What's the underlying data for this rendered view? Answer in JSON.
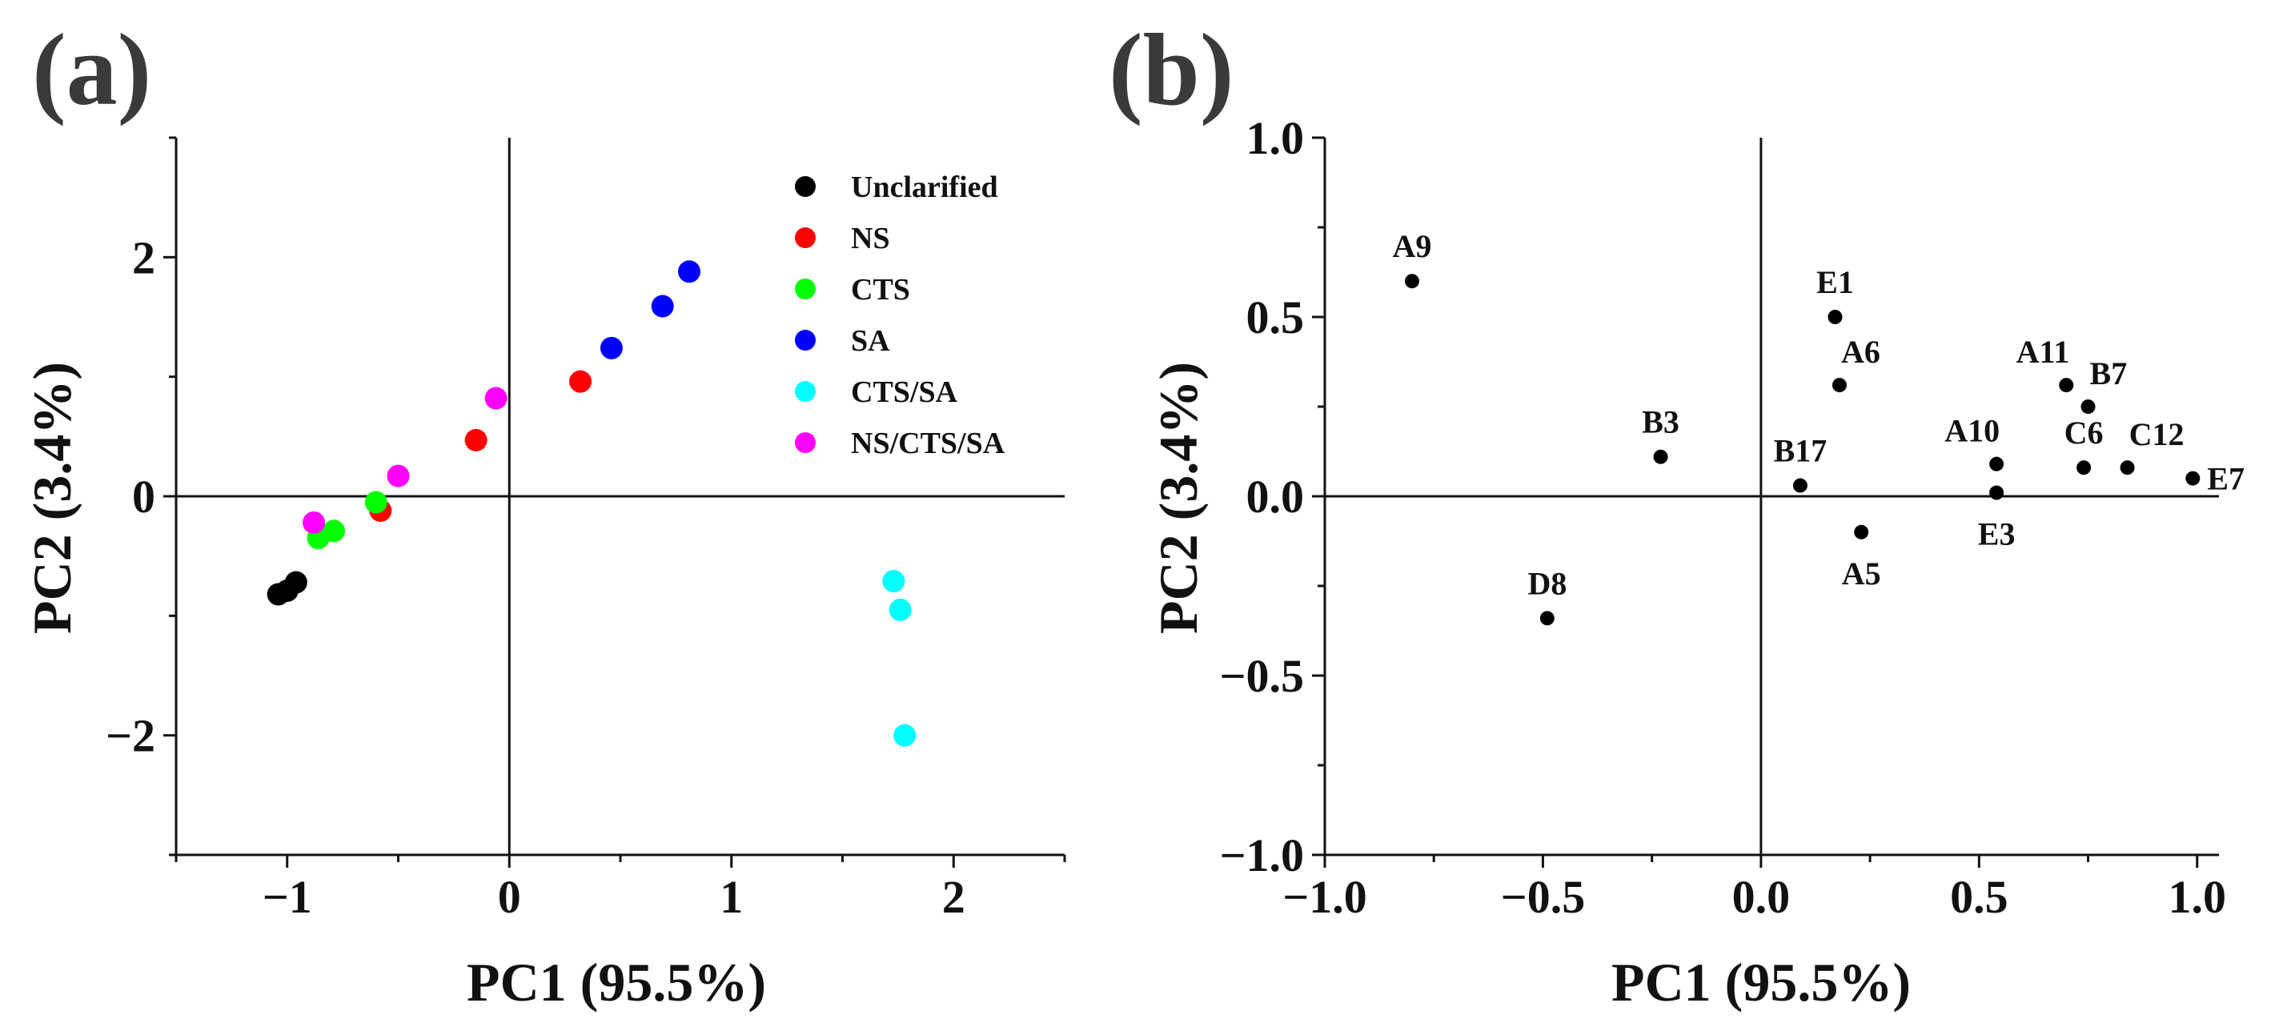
{
  "chart_data": [
    {
      "panel_label": "(a)",
      "type": "scatter",
      "xlabel": "PC1 (95.5%)",
      "ylabel": "PC2 (3.4%)",
      "xlim": [
        -1.5,
        2.5
      ],
      "ylim": [
        -3.0,
        3.0
      ],
      "xticks": [
        -1,
        0,
        1,
        2
      ],
      "xtick_labels": [
        "−1",
        "0",
        "1",
        "2"
      ],
      "yticks": [
        -2,
        0,
        2
      ],
      "ytick_labels": [
        "−2",
        "0",
        "2"
      ],
      "reference_lines": {
        "x": 0,
        "y": 0
      },
      "legend_position": "top-right",
      "series": [
        {
          "name": "Unclarified",
          "color": "#000000",
          "points": [
            [
              -1.04,
              -0.82
            ],
            [
              -1.0,
              -0.79
            ],
            [
              -0.96,
              -0.72
            ]
          ]
        },
        {
          "name": "NS",
          "color": "#ff0000",
          "points": [
            [
              -0.58,
              -0.12
            ],
            [
              -0.15,
              0.47
            ],
            [
              0.32,
              0.96
            ]
          ]
        },
        {
          "name": "CTS",
          "color": "#00ff00",
          "points": [
            [
              -0.86,
              -0.35
            ],
            [
              -0.79,
              -0.29
            ],
            [
              -0.6,
              -0.05
            ]
          ]
        },
        {
          "name": "SA",
          "color": "#0000ff",
          "points": [
            [
              0.46,
              1.24
            ],
            [
              0.69,
              1.59
            ],
            [
              0.81,
              1.88
            ]
          ]
        },
        {
          "name": "CTS/SA",
          "color": "#00ffff",
          "points": [
            [
              1.73,
              -0.71
            ],
            [
              1.76,
              -0.95
            ],
            [
              1.78,
              -2.0
            ]
          ]
        },
        {
          "name": "NS/CTS/SA",
          "color": "#ff00ff",
          "points": [
            [
              -0.88,
              -0.22
            ],
            [
              -0.5,
              0.17
            ],
            [
              -0.06,
              0.82
            ]
          ]
        }
      ]
    },
    {
      "panel_label": "(b)",
      "type": "scatter",
      "xlabel": "PC1 (95.5%)",
      "ylabel": "PC2 (3.4%)",
      "xlim": [
        -1.0,
        1.05
      ],
      "ylim": [
        -1.0,
        1.0
      ],
      "xticks": [
        -1.0,
        -0.5,
        0.0,
        0.5,
        1.0
      ],
      "xtick_labels": [
        "−1.0",
        "−0.5",
        "0.0",
        "0.5",
        "1.0"
      ],
      "yticks": [
        -1.0,
        -0.5,
        0.0,
        0.5,
        1.0
      ],
      "ytick_labels": [
        "−1.0",
        "−0.5",
        "0.0",
        "0.5",
        "1.0"
      ],
      "reference_lines": {
        "x": 0,
        "y": 0
      },
      "point_color": "#000000",
      "points": [
        {
          "label": "A9",
          "x": -0.8,
          "y": 0.6,
          "label_pos": "above"
        },
        {
          "label": "E1",
          "x": 0.17,
          "y": 0.5,
          "label_pos": "above"
        },
        {
          "label": "A6",
          "x": 0.18,
          "y": 0.31,
          "label_pos": "upper-right"
        },
        {
          "label": "A11",
          "x": 0.7,
          "y": 0.31,
          "label_pos": "upper-left"
        },
        {
          "label": "B7",
          "x": 0.75,
          "y": 0.25,
          "label_pos": "upper-right"
        },
        {
          "label": "B3",
          "x": -0.23,
          "y": 0.11,
          "label_pos": "above"
        },
        {
          "label": "B17",
          "x": 0.09,
          "y": 0.03,
          "label_pos": "above"
        },
        {
          "label": "A10",
          "x": 0.54,
          "y": 0.09,
          "label_pos": "upper-left"
        },
        {
          "label": "C6",
          "x": 0.74,
          "y": 0.08,
          "label_pos": "above"
        },
        {
          "label": "C12",
          "x": 0.84,
          "y": 0.08,
          "label_pos": "upper-right"
        },
        {
          "label": "E7",
          "x": 0.99,
          "y": 0.05,
          "label_pos": "right"
        },
        {
          "label": "E3",
          "x": 0.54,
          "y": 0.01,
          "label_pos": "below"
        },
        {
          "label": "A5",
          "x": 0.23,
          "y": -0.1,
          "label_pos": "below"
        },
        {
          "label": "D8",
          "x": -0.49,
          "y": -0.34,
          "label_pos": "above"
        }
      ]
    }
  ]
}
